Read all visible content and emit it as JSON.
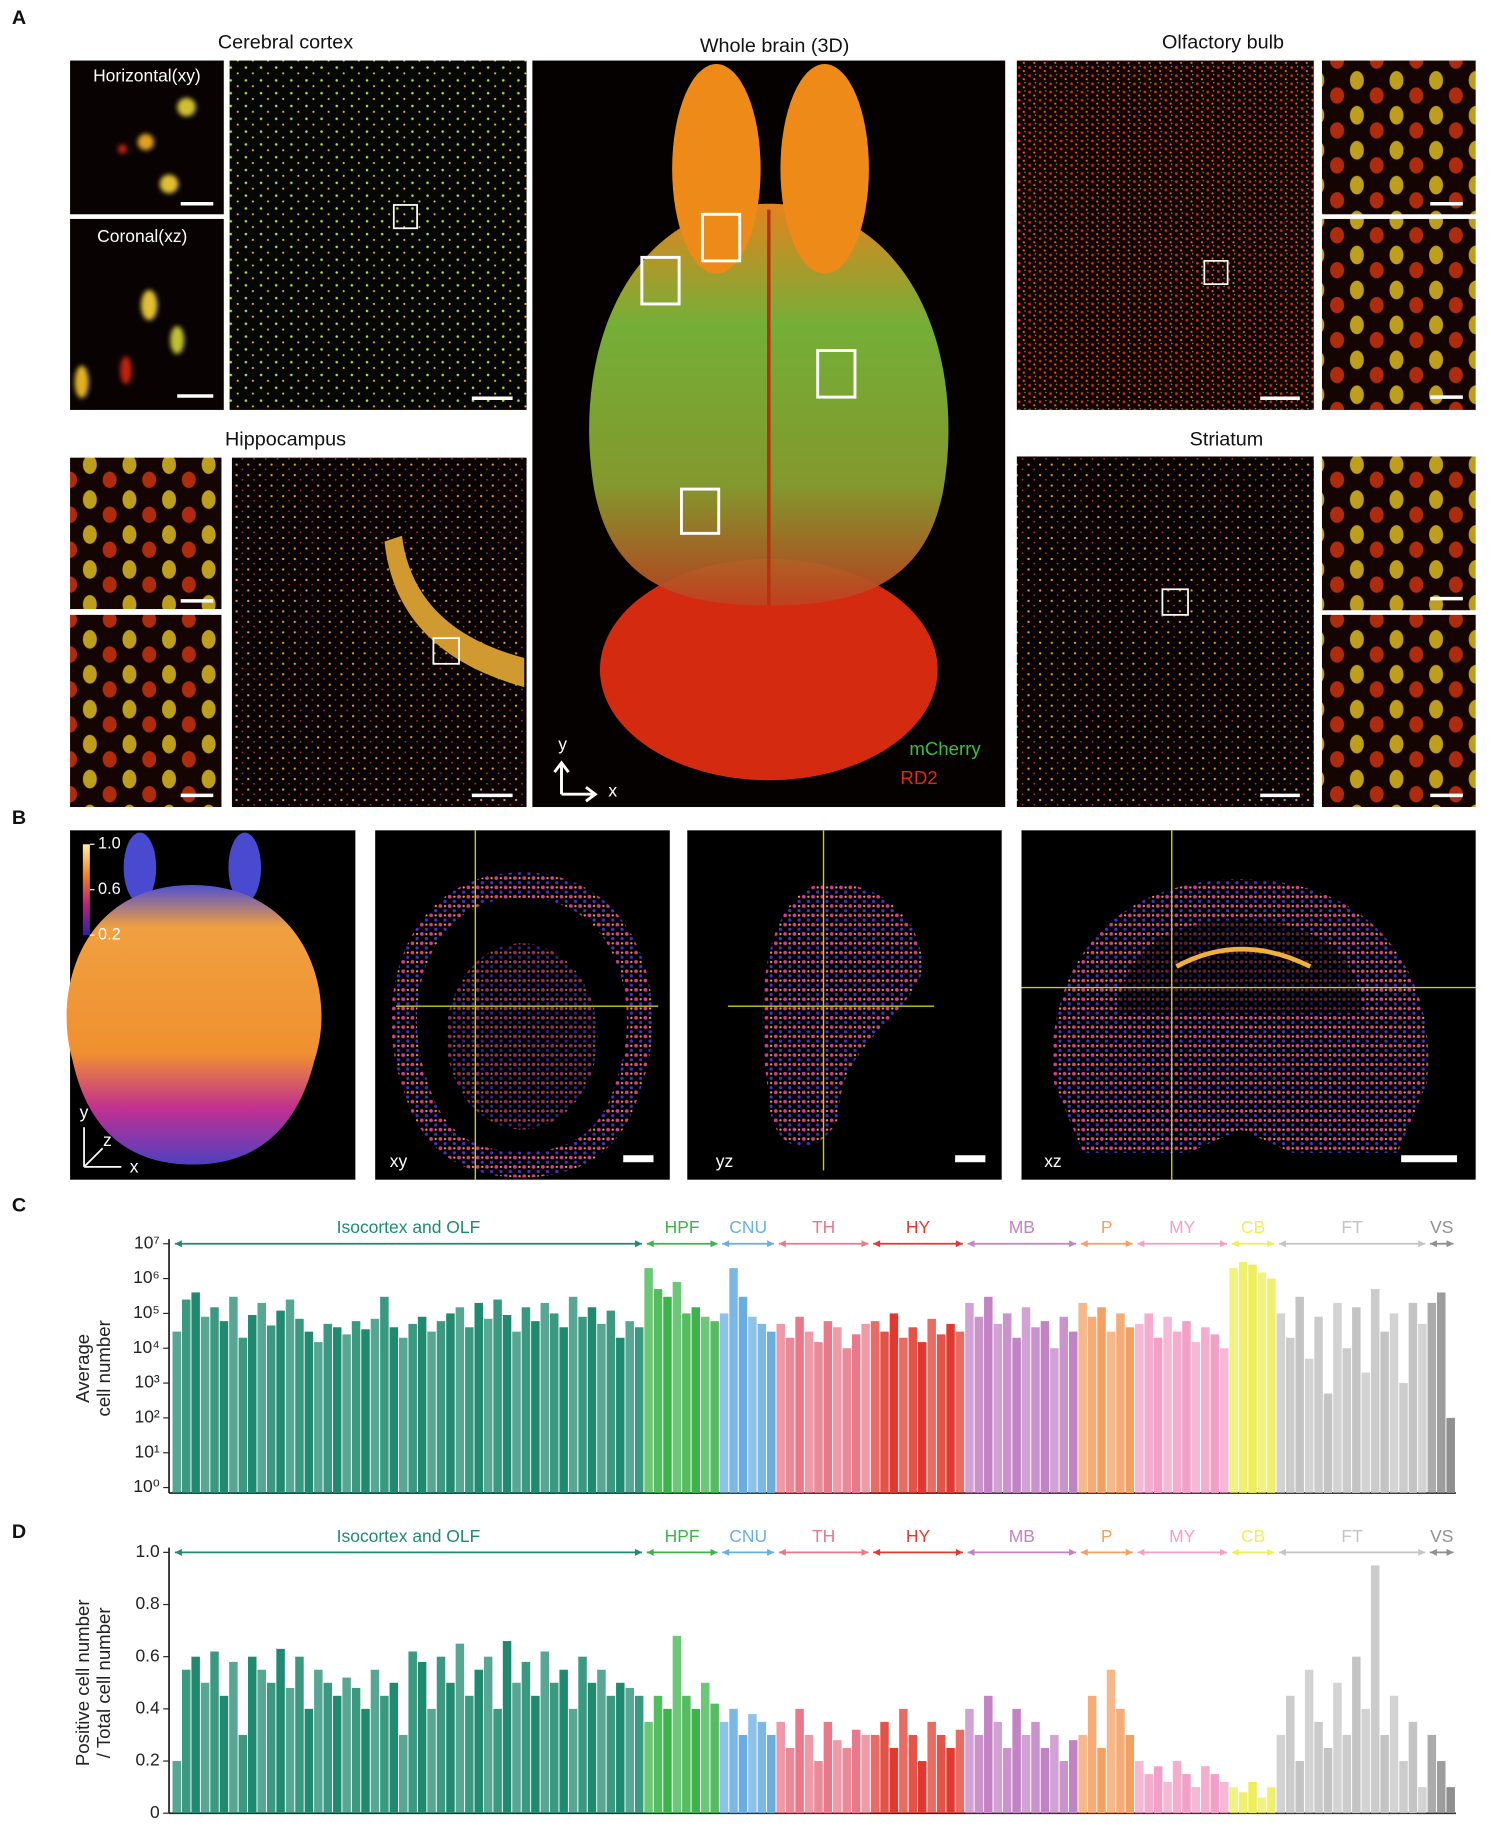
{
  "figure": {
    "panel_labels": [
      "A",
      "B",
      "C",
      "D"
    ],
    "a": {
      "titles": [
        "Cerebral cortex",
        "Whole brain (3D)",
        "Olfactory bulb",
        "Hippocampus",
        "Striatum"
      ],
      "view_labels": [
        "Horizontal(xy)",
        "Coronal(xz)"
      ],
      "legend": [
        "mCherry",
        "RD2"
      ],
      "axes": [
        "y",
        "x"
      ]
    },
    "b": {
      "colorbar_ticks": [
        {
          "value": 1,
          "label": "1.0"
        },
        0.6,
        0.2
      ],
      "axes": [
        "y",
        "z",
        "x"
      ],
      "views": [
        "xy",
        "yz",
        "xz"
      ]
    }
  },
  "chart_data": [
    {
      "type": "bar",
      "log_scale": true,
      "ylabel": [
        "Average",
        "cell number"
      ],
      "ylim": [
        0.7,
        10000000
      ],
      "yticks": [
        {
          "value": 10000000,
          "label": "10⁷"
        },
        {
          "value": 1000000,
          "label": "10⁶"
        },
        {
          "value": 100000,
          "label": "10⁵"
        },
        {
          "value": 10000,
          "label": "10⁴"
        },
        {
          "value": 1000,
          "label": "10³"
        },
        {
          "value": 100,
          "label": "10²"
        },
        {
          "value": 10,
          "label": "10¹"
        },
        {
          "value": 1,
          "label": "10⁰"
        }
      ],
      "series": [
        {
          "name": "Isocortex and OLF",
          "color": "#1f8a70",
          "values": [
            30000,
            250000,
            400000,
            80000,
            150000,
            60000,
            300000,
            20000,
            90000,
            200000,
            45000,
            120000,
            250000,
            70000,
            30000,
            15000,
            50000,
            40000,
            25000,
            60000,
            35000,
            70000,
            300000,
            40000,
            20000,
            50000,
            80000,
            30000,
            60000,
            100000,
            150000,
            40000,
            200000,
            70000,
            250000,
            90000,
            30000,
            150000,
            60000,
            200000,
            100000,
            40000,
            300000,
            80000,
            150000,
            50000,
            120000,
            20000,
            60000,
            40000
          ]
        },
        {
          "name": "HPF",
          "color": "#3cb44b",
          "values": [
            2000000,
            500000,
            300000,
            800000,
            100000,
            150000,
            80000,
            60000
          ]
        },
        {
          "name": "CNU",
          "color": "#6aaee0",
          "values": [
            100000,
            2000000,
            300000,
            80000,
            50000,
            30000
          ]
        },
        {
          "name": "TH",
          "color": "#e8788a",
          "values": [
            50000,
            20000,
            80000,
            30000,
            15000,
            60000,
            40000,
            10000,
            25000,
            50000
          ]
        },
        {
          "name": "HY",
          "color": "#e03a30",
          "values": [
            60000,
            30000,
            100000,
            20000,
            40000,
            15000,
            70000,
            25000,
            50000,
            30000
          ]
        },
        {
          "name": "MB",
          "color": "#c283c4",
          "values": [
            200000,
            80000,
            300000,
            50000,
            100000,
            20000,
            150000,
            40000,
            60000,
            10000,
            80000,
            30000
          ]
        },
        {
          "name": "P",
          "color": "#f3a063",
          "values": [
            200000,
            80000,
            150000,
            30000,
            100000,
            40000
          ]
        },
        {
          "name": "MY",
          "color": "#f2a0c8",
          "values": [
            50000,
            100000,
            20000,
            80000,
            30000,
            60000,
            15000,
            40000,
            25000,
            10000
          ]
        },
        {
          "name": "CB",
          "color": "#eeee5a",
          "values": [
            2000000,
            3000000,
            2500000,
            1500000,
            1000000
          ]
        },
        {
          "name": "FT",
          "color": "#c4c4c4",
          "values": [
            100000,
            20000,
            300000,
            5000,
            80000,
            500,
            200000,
            10000,
            150000,
            2000,
            500000,
            30000,
            100000,
            1000,
            200000,
            50000
          ]
        },
        {
          "name": "VS",
          "color": "#8f8f8f",
          "values": [
            200000,
            400000,
            100
          ]
        }
      ]
    },
    {
      "type": "bar",
      "log_scale": false,
      "ylabel": [
        "Positive cell number",
        "/ Total cell number"
      ],
      "ylim": [
        0,
        1
      ],
      "yticks": [
        {
          "value": 1,
          "label": "1.0"
        },
        0.8,
        0.6,
        0.4,
        0.2,
        0
      ],
      "series": [
        {
          "name": "Isocortex and OLF",
          "color": "#1f8a70",
          "values": [
            0.2,
            0.55,
            0.6,
            0.5,
            0.62,
            0.45,
            0.58,
            0.3,
            0.6,
            0.55,
            0.5,
            0.63,
            0.48,
            0.6,
            0.4,
            0.55,
            0.5,
            0.45,
            0.52,
            0.48,
            0.4,
            0.55,
            0.45,
            0.5,
            0.3,
            0.62,
            0.58,
            0.4,
            0.6,
            0.5,
            0.65,
            0.45,
            0.55,
            0.6,
            0.4,
            0.66,
            0.5,
            0.58,
            0.45,
            0.62,
            0.5,
            0.55,
            0.4,
            0.6,
            0.5,
            0.55,
            0.45,
            0.5,
            0.48,
            0.45
          ]
        },
        {
          "name": "HPF",
          "color": "#3cb44b",
          "values": [
            0.35,
            0.45,
            0.4,
            0.68,
            0.45,
            0.4,
            0.5,
            0.42
          ]
        },
        {
          "name": "CNU",
          "color": "#6aaee0",
          "values": [
            0.35,
            0.4,
            0.3,
            0.38,
            0.35,
            0.3
          ]
        },
        {
          "name": "TH",
          "color": "#e8788a",
          "values": [
            0.35,
            0.25,
            0.4,
            0.3,
            0.2,
            0.35,
            0.28,
            0.25,
            0.32,
            0.3
          ]
        },
        {
          "name": "HY",
          "color": "#e03a30",
          "values": [
            0.3,
            0.35,
            0.25,
            0.4,
            0.3,
            0.2,
            0.35,
            0.3,
            0.25,
            0.32
          ]
        },
        {
          "name": "MB",
          "color": "#c283c4",
          "values": [
            0.4,
            0.3,
            0.45,
            0.35,
            0.25,
            0.4,
            0.3,
            0.35,
            0.25,
            0.3,
            0.2,
            0.28
          ]
        },
        {
          "name": "P",
          "color": "#f3a063",
          "values": [
            0.3,
            0.45,
            0.25,
            0.55,
            0.4,
            0.3
          ]
        },
        {
          "name": "MY",
          "color": "#f2a0c8",
          "values": [
            0.2,
            0.15,
            0.18,
            0.12,
            0.2,
            0.15,
            0.1,
            0.18,
            0.15,
            0.12
          ]
        },
        {
          "name": "CB",
          "color": "#eeee5a",
          "values": [
            0.1,
            0.08,
            0.12,
            0.06,
            0.1
          ]
        },
        {
          "name": "FT",
          "color": "#c4c4c4",
          "values": [
            0.3,
            0.45,
            0.2,
            0.55,
            0.35,
            0.25,
            0.5,
            0.3,
            0.6,
            0.4,
            0.95,
            0.3,
            0.45,
            0.2,
            0.35,
            0.1
          ]
        },
        {
          "name": "VS",
          "color": "#8f8f8f",
          "values": [
            0.3,
            0.2,
            0.1
          ]
        }
      ]
    }
  ]
}
